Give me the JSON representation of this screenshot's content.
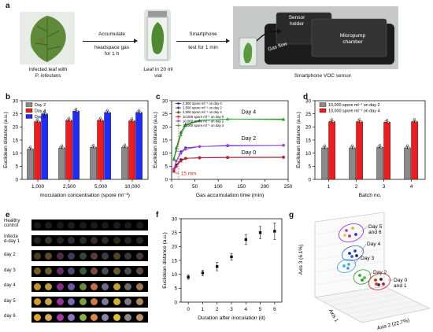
{
  "panel_a": {
    "label": "a",
    "leaf_caption_line1": "Infected leaf with",
    "leaf_caption_line2": "P. infestans",
    "step1_line1": "Accumulate",
    "step1_line2": "headspace gas",
    "step1_line3": "for 1 h",
    "vial_caption_line1": "Leaf in 20 ml",
    "vial_caption_line2": "vial",
    "step2_line1": "Smartphone",
    "step2_line2": "test for 1 min",
    "sensor_holder_line1": "Sensor",
    "sensor_holder_line2": "holder",
    "micropump_line1": "Micropump",
    "micropump_line2": "chamber",
    "gas_flow": "Gas flow",
    "device_caption": "Smartphone VOC sensor"
  },
  "panel_e": {
    "label": "e",
    "rows": [
      "Healthy control",
      "Infected d-day 1",
      "day 2",
      "day 3",
      "day 4",
      "day 5",
      "day 6"
    ],
    "row_label_lines": [
      [
        "Healthy",
        "control"
      ],
      [
        "Infecte",
        "d-day 1"
      ],
      [
        "day 2"
      ],
      [
        "day 3"
      ],
      [
        "day 4"
      ],
      [
        "day 5"
      ],
      [
        "day 6"
      ]
    ],
    "colors": [
      [
        "#1a1a1a",
        "#1c1c1c",
        "#181818",
        "#1d1d1d",
        "#1a1a1a",
        "#1b1b1b",
        "#1a1a1a",
        "#1c1c1c",
        "#191919",
        "#1b1b1b"
      ],
      [
        "#262218",
        "#3a3424",
        "#2a1f2b",
        "#322b3a",
        "#233026",
        "#3a2a2a",
        "#2a2a30",
        "#2d2a1a",
        "#252525",
        "#2b2626"
      ],
      [
        "#4a3d1c",
        "#5a4a28",
        "#4a2a48",
        "#3c3a5a",
        "#2c4a34",
        "#5a3a3a",
        "#3a3a4a",
        "#4d4520",
        "#383838",
        "#4a3a36"
      ],
      [
        "#7a5a20",
        "#6a5a30",
        "#6a2a6a",
        "#4a4a7a",
        "#3a5a3a",
        "#7a4a40",
        "#4a4a5a",
        "#6a5a2a",
        "#4a4a4a",
        "#5a4a40"
      ],
      [
        "#c8902a",
        "#b89a40",
        "#8a2a8a",
        "#6a5aa0",
        "#6a8a3a",
        "#c07048",
        "#6a6a8a",
        "#c0a030",
        "#6a6a6a",
        "#a07a50"
      ],
      [
        "#d89a28",
        "#c8a448",
        "#9a3098",
        "#7a6ab0",
        "#7aa040",
        "#d07a48",
        "#7a7a9a",
        "#d4b030",
        "#7a7a7a",
        "#b0885a"
      ],
      [
        "#e0a428",
        "#d0ac50",
        "#a838a8",
        "#8878c0",
        "#88b048",
        "#dc8450",
        "#8888a8",
        "#e0bc34",
        "#888888",
        "#c09464"
      ]
    ]
  },
  "chart_data": [
    {
      "panel": "b",
      "type": "bar",
      "categories": [
        "1,000",
        "2,500",
        "5,000",
        "10,000"
      ],
      "series": [
        {
          "name": "Day 2",
          "color": "#8a8a8a",
          "values": [
            11.5,
            12,
            12.2,
            12.3
          ]
        },
        {
          "name": "Day 4",
          "color": "#ee1c1c",
          "values": [
            22,
            22.5,
            22.5,
            22.3
          ]
        },
        {
          "name": "Day 6",
          "color": "#1f2cff",
          "values": [
            25,
            26,
            25.5,
            25.5
          ]
        }
      ],
      "xlabel": "Inoculation concentration (spore ml⁻¹)",
      "ylabel": "Euclidean distance (a.u.)",
      "yticks": [
        0,
        5,
        10,
        15,
        20,
        25,
        30
      ],
      "ylim": [
        0,
        30
      ],
      "legend": "top-left"
    },
    {
      "panel": "c",
      "type": "line",
      "x": [
        5,
        10,
        20,
        30,
        60,
        120,
        240
      ],
      "series": [
        {
          "name": "2,500 spore ml⁻¹ on day 0",
          "color": "#1a1a7a",
          "values": [
            3.5,
            5.5,
            7.5,
            8,
            8.2,
            8.3,
            8.4
          ]
        },
        {
          "name": "2,500 spore ml⁻¹ on day 2",
          "color": "#2a2ad0",
          "values": [
            4,
            7,
            10.5,
            12,
            12.5,
            12.8,
            13
          ]
        },
        {
          "name": "2,500 spore ml⁻¹ on day 4",
          "color": "#1a6a1a",
          "values": [
            8,
            12,
            18,
            21,
            22.5,
            23,
            23
          ]
        },
        {
          "name": "10,000 spore ml⁻¹ on day 0",
          "color": "#cc2222",
          "values": [
            3,
            5,
            7,
            8,
            8.3,
            8.4,
            8.5
          ]
        },
        {
          "name": "10,000 spore ml⁻¹ on day 2",
          "color": "#b040d0",
          "values": [
            4,
            7,
            10,
            11.5,
            12.5,
            13,
            13
          ]
        },
        {
          "name": "10,000 spore ml⁻¹ on day 4",
          "color": "#30b030",
          "values": [
            7.5,
            11,
            17,
            20.5,
            22.5,
            23,
            22.8
          ]
        }
      ],
      "annotations": [
        "Day 4",
        "Day 2",
        "Day 0",
        "15 min"
      ],
      "xlabel": "Gas accumulation time (min)",
      "ylabel": "Euclidean distance (a.u.)",
      "xticks": [
        0,
        50,
        100,
        150,
        200,
        250
      ],
      "yticks": [
        0,
        5,
        10,
        15,
        20,
        25,
        30
      ],
      "xlim": [
        0,
        250
      ],
      "ylim": [
        0,
        30
      ],
      "legend": "top-left"
    },
    {
      "panel": "d",
      "type": "bar",
      "categories": [
        "1",
        "2",
        "3",
        "4"
      ],
      "series": [
        {
          "name": "10,000 spore ml⁻¹ on day 2",
          "color": "#8a8a8a",
          "values": [
            12,
            12,
            12.2,
            12
          ]
        },
        {
          "name": "10,000 spore ml⁻¹ on day 4",
          "color": "#ee1c1c",
          "values": [
            22,
            22,
            21.8,
            22
          ]
        }
      ],
      "xlabel": "Batch no.",
      "ylabel": "Euclidean distance (a.u.)",
      "yticks": [
        0,
        5,
        10,
        15,
        20,
        25,
        30
      ],
      "ylim": [
        0,
        30
      ],
      "legend": "top-left"
    },
    {
      "panel": "f",
      "type": "scatter",
      "x": [
        0,
        1,
        2,
        3,
        4,
        5,
        6
      ],
      "values": [
        9,
        10.5,
        12.8,
        16.3,
        22.5,
        25,
        25.5
      ],
      "errors": [
        0.8,
        1.0,
        1.5,
        1.2,
        1.8,
        2.2,
        3.0
      ],
      "xlabel": "Duration after inoculation (d)",
      "ylabel": "Euclidean distance (a.u.)",
      "xticks": [
        0,
        1,
        2,
        3,
        4,
        5,
        6
      ],
      "yticks": [
        0,
        5,
        10,
        15,
        20,
        25,
        30
      ],
      "xlim": [
        -0.5,
        6.5
      ],
      "ylim": [
        0,
        30
      ]
    },
    {
      "panel": "g",
      "type": "scatter",
      "xlabel": "Axis 2 (22.7%)",
      "ylabel": "Axis 3 (6.1%)",
      "zlabel": "Axis 1",
      "groups": [
        "Day 5 and 6",
        "Day 4",
        "Day 3",
        "Day 2",
        "Day 0 and 1"
      ]
    }
  ]
}
